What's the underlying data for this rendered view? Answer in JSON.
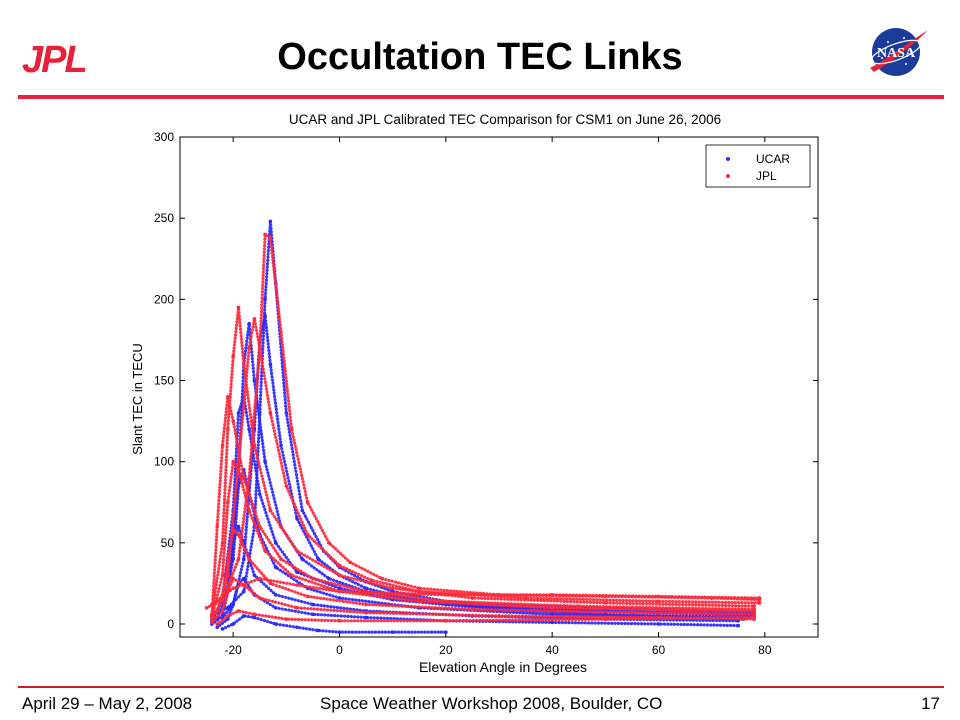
{
  "slide": {
    "title": "Occultation TEC Links",
    "logos": {
      "left": {
        "text": "JPL",
        "color": "#e8203a"
      },
      "right": {
        "text": "NASA",
        "color": "#1c3c9c",
        "accent": "#e8203a"
      }
    },
    "footer": {
      "date": "April 29 – May 2, 2008",
      "event": "Space Weather Workshop 2008, Boulder, CO",
      "page": "17"
    }
  },
  "colors": {
    "accent_rule": "#e8203a",
    "ucar": "#2a2aff",
    "jpl": "#ff2a3c"
  },
  "chart_data": {
    "type": "scatter",
    "title": "UCAR and JPL Calibrated TEC Comparison for CSM1 on June 26, 2006",
    "xlabel": "Elevation Angle in Degrees",
    "ylabel": "Slant TEC in TECU",
    "xlim": [
      -30,
      90
    ],
    "ylim": [
      -8,
      300
    ],
    "xticks": [
      -20,
      0,
      20,
      40,
      60,
      80
    ],
    "yticks": [
      0,
      50,
      100,
      150,
      200,
      250,
      300
    ],
    "grid": false,
    "legend": {
      "position": "top-right",
      "entries": [
        "UCAR",
        "JPL"
      ]
    },
    "series": [
      {
        "name": "UCAR",
        "color": "#2a2aff",
        "marker": "dot",
        "tracks": [
          [
            [
              -24,
              5
            ],
            [
              -21,
              10
            ],
            [
              -18,
              20
            ],
            [
              -16,
              60
            ],
            [
              -15,
              130
            ],
            [
              -14,
              200
            ],
            [
              -13,
              248
            ],
            [
              -12,
              210
            ],
            [
              -10,
              130
            ],
            [
              -7,
              70
            ],
            [
              -3,
              45
            ],
            [
              0,
              35
            ],
            [
              5,
              26
            ],
            [
              10,
              20
            ],
            [
              20,
              14
            ],
            [
              30,
              12
            ],
            [
              50,
              10
            ],
            [
              70,
              8
            ],
            [
              78,
              7
            ]
          ],
          [
            [
              -22,
              4
            ],
            [
              -20,
              12
            ],
            [
              -18,
              40
            ],
            [
              -16,
              120
            ],
            [
              -15,
              175
            ],
            [
              -14,
              190
            ],
            [
              -13,
              160
            ],
            [
              -11,
              110
            ],
            [
              -8,
              65
            ],
            [
              -4,
              40
            ],
            [
              0,
              30
            ],
            [
              5,
              22
            ],
            [
              15,
              14
            ],
            [
              30,
              10
            ],
            [
              50,
              8
            ],
            [
              78,
              6
            ]
          ],
          [
            [
              -23,
              3
            ],
            [
              -21,
              20
            ],
            [
              -19,
              90
            ],
            [
              -18,
              160
            ],
            [
              -17,
              185
            ],
            [
              -16,
              150
            ],
            [
              -14,
              100
            ],
            [
              -11,
              60
            ],
            [
              -7,
              40
            ],
            [
              -2,
              28
            ],
            [
              5,
              20
            ],
            [
              20,
              12
            ],
            [
              40,
              9
            ],
            [
              60,
              7
            ],
            [
              78,
              5
            ]
          ],
          [
            [
              -24,
              2
            ],
            [
              -22,
              15
            ],
            [
              -20,
              70
            ],
            [
              -19,
              130
            ],
            [
              -18,
              140
            ],
            [
              -17,
              120
            ],
            [
              -15,
              80
            ],
            [
              -12,
              50
            ],
            [
              -8,
              32
            ],
            [
              0,
              22
            ],
            [
              10,
              15
            ],
            [
              30,
              9
            ],
            [
              50,
              6
            ],
            [
              77,
              4
            ]
          ],
          [
            [
              -24,
              1
            ],
            [
              -22,
              8
            ],
            [
              -20,
              40
            ],
            [
              -19,
              85
            ],
            [
              -18,
              95
            ],
            [
              -17,
              80
            ],
            [
              -15,
              55
            ],
            [
              -12,
              35
            ],
            [
              -6,
              22
            ],
            [
              0,
              16
            ],
            [
              15,
              10
            ],
            [
              40,
              6
            ],
            [
              76,
              3
            ]
          ],
          [
            [
              -24,
              0
            ],
            [
              -22,
              5
            ],
            [
              -21,
              20
            ],
            [
              -20,
              50
            ],
            [
              -19,
              60
            ],
            [
              -18,
              50
            ],
            [
              -16,
              30
            ],
            [
              -12,
              18
            ],
            [
              -5,
              12
            ],
            [
              5,
              8
            ],
            [
              25,
              5
            ],
            [
              50,
              3
            ],
            [
              75,
              2
            ]
          ],
          [
            [
              -23,
              -2
            ],
            [
              -21,
              3
            ],
            [
              -20,
              12
            ],
            [
              -19,
              25
            ],
            [
              -18,
              28
            ],
            [
              -16,
              18
            ],
            [
              -12,
              10
            ],
            [
              -5,
              6
            ],
            [
              5,
              4
            ],
            [
              20,
              2
            ],
            [
              40,
              1
            ],
            [
              60,
              0
            ],
            [
              75,
              -1
            ]
          ],
          [
            [
              -22,
              -3
            ],
            [
              -20,
              0
            ],
            [
              -18,
              5
            ],
            [
              -16,
              4
            ],
            [
              -12,
              0
            ],
            [
              -8,
              -2
            ],
            [
              -4,
              -4
            ],
            [
              0,
              -5
            ],
            [
              10,
              -5
            ],
            [
              20,
              -5
            ]
          ]
        ]
      },
      {
        "name": "JPL",
        "color": "#ff2a3c",
        "marker": "dot",
        "tracks": [
          [
            [
              -25,
              10
            ],
            [
              -22,
              15
            ],
            [
              -19,
              40
            ],
            [
              -17,
              90
            ],
            [
              -15,
              170
            ],
            [
              -14,
              240
            ],
            [
              -13,
              238
            ],
            [
              -11,
              180
            ],
            [
              -9,
              120
            ],
            [
              -6,
              75
            ],
            [
              -2,
              50
            ],
            [
              2,
              38
            ],
            [
              8,
              28
            ],
            [
              15,
              22
            ],
            [
              30,
              18
            ],
            [
              50,
              17
            ],
            [
              70,
              16
            ],
            [
              79,
              15
            ]
          ],
          [
            [
              -23,
              8
            ],
            [
              -21,
              30
            ],
            [
              -19,
              100
            ],
            [
              -17,
              170
            ],
            [
              -16,
              188
            ],
            [
              -15,
              170
            ],
            [
              -13,
              130
            ],
            [
              -10,
              85
            ],
            [
              -6,
              55
            ],
            [
              0,
              36
            ],
            [
              6,
              27
            ],
            [
              15,
              20
            ],
            [
              35,
              16
            ],
            [
              60,
              14
            ],
            [
              79,
              13
            ]
          ],
          [
            [
              -24,
              6
            ],
            [
              -22,
              50
            ],
            [
              -21,
              120
            ],
            [
              -20,
              165
            ],
            [
              -19,
              195
            ],
            [
              -18,
              160
            ],
            [
              -16,
              110
            ],
            [
              -13,
              70
            ],
            [
              -8,
              45
            ],
            [
              0,
              30
            ],
            [
              10,
              22
            ],
            [
              25,
              16
            ],
            [
              50,
              13
            ],
            [
              78,
              11
            ]
          ],
          [
            [
              -24,
              5
            ],
            [
              -23,
              60
            ],
            [
              -22,
              110
            ],
            [
              -21,
              140
            ],
            [
              -20,
              125
            ],
            [
              -18,
              90
            ],
            [
              -15,
              60
            ],
            [
              -11,
              40
            ],
            [
              -5,
              28
            ],
            [
              5,
              20
            ],
            [
              20,
              14
            ],
            [
              45,
              11
            ],
            [
              78,
              9
            ]
          ],
          [
            [
              -24,
              4
            ],
            [
              -22,
              30
            ],
            [
              -21,
              75
            ],
            [
              -20,
              100
            ],
            [
              -19,
              95
            ],
            [
              -17,
              70
            ],
            [
              -14,
              45
            ],
            [
              -9,
              30
            ],
            [
              0,
              20
            ],
            [
              15,
              14
            ],
            [
              40,
              10
            ],
            [
              78,
              8
            ]
          ],
          [
            [
              -24,
              3
            ],
            [
              -22,
              15
            ],
            [
              -21,
              40
            ],
            [
              -20,
              58
            ],
            [
              -19,
              55
            ],
            [
              -17,
              40
            ],
            [
              -13,
              25
            ],
            [
              -6,
              17
            ],
            [
              5,
              12
            ],
            [
              25,
              9
            ],
            [
              55,
              7
            ],
            [
              78,
              6
            ]
          ],
          [
            [
              -24,
              1
            ],
            [
              -22,
              8
            ],
            [
              -21,
              20
            ],
            [
              -20,
              28
            ],
            [
              -18,
              24
            ],
            [
              -15,
              16
            ],
            [
              -8,
              10
            ],
            [
              5,
              7
            ],
            [
              30,
              5
            ],
            [
              60,
              4
            ],
            [
              78,
              3
            ]
          ],
          [
            [
              -23,
              0
            ],
            [
              -21,
              5
            ],
            [
              -19,
              8
            ],
            [
              -16,
              6
            ],
            [
              -10,
              3
            ],
            [
              0,
              2
            ],
            [
              20,
              2
            ],
            [
              50,
              3
            ],
            [
              78,
              4
            ]
          ],
          [
            [
              -24,
              12
            ],
            [
              -20,
              22
            ],
            [
              -15,
              28
            ],
            [
              -8,
              24
            ],
            [
              0,
              20
            ],
            [
              20,
              18
            ],
            [
              40,
              18
            ],
            [
              60,
              17
            ],
            [
              79,
              16
            ]
          ]
        ]
      }
    ]
  }
}
